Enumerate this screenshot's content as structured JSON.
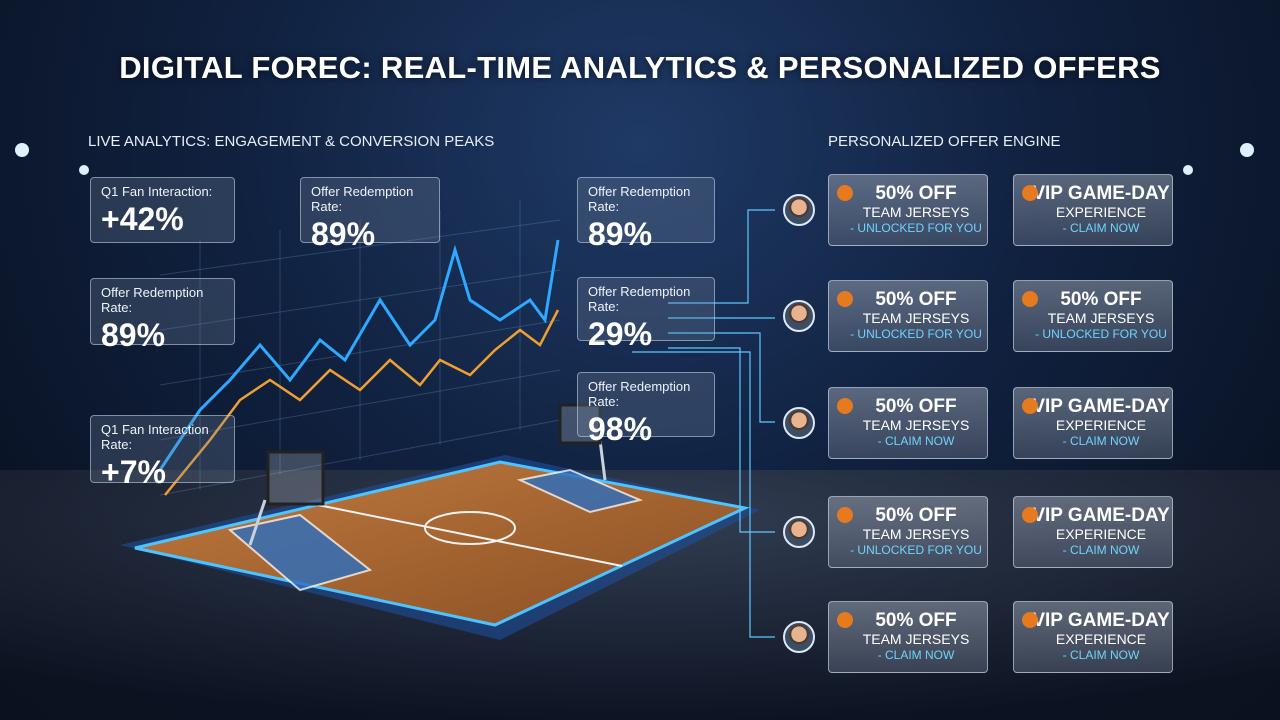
{
  "header": {
    "title": "DIGITAL FOREC: REAL-TIME ANALYTICS & PERSONALIZED OFFERS"
  },
  "analytics": {
    "title": "LIVE ANALYTICS: ENGAGEMENT & CONVERSION PEAKS",
    "stats": [
      {
        "label": "Q1 Fan Interaction:",
        "value": "+42%"
      },
      {
        "label": "Offer Redemption Rate:",
        "value": "89%"
      },
      {
        "label": "Offer Redemption Rate:",
        "value": "89%"
      },
      {
        "label": "Offer Redemption Rate:",
        "value": "89%"
      },
      {
        "label": "Offer Redemption Rate:",
        "value": "29%"
      },
      {
        "label": "Offer Redemption Rate:",
        "value": "98%"
      },
      {
        "label": "Q1 Fan Interaction Rate:",
        "value": "+7%"
      }
    ]
  },
  "offers": {
    "title": "PERSONALIZED OFFER ENGINE",
    "rows": [
      [
        {
          "headline": "50% OFF",
          "item": "TEAM JERSEYS",
          "status": "- UNLOCKED FOR YOU"
        },
        {
          "headline": "VIP GAME-DAY",
          "item": "EXPERIENCE",
          "status": "- CLAIM NOW"
        }
      ],
      [
        {
          "headline": "50% OFF",
          "item": "TEAM JERSEYS",
          "status": "- UNLOCKED FOR YOU"
        },
        {
          "headline": "50% OFF",
          "item": "TEAM JERSEYS",
          "status": "- UNLOCKED FOR YOU"
        }
      ],
      [
        {
          "headline": "50% OFF",
          "item": "TEAM JERSEYS",
          "status": "- CLAIM NOW"
        },
        {
          "headline": "VIP GAME-DAY",
          "item": "EXPERIENCE",
          "status": "- CLAIM NOW"
        }
      ],
      [
        {
          "headline": "50% OFF",
          "item": "TEAM JERSEYS",
          "status": "- UNLOCKED FOR YOU"
        },
        {
          "headline": "VIP GAME-DAY",
          "item": "EXPERIENCE",
          "status": "- CLAIM NOW"
        }
      ],
      [
        {
          "headline": "50% OFF",
          "item": "TEAM JERSEYS",
          "status": "- CLAIM NOW"
        },
        {
          "headline": "VIP GAME-DAY",
          "item": "EXPERIENCE",
          "status": "- CLAIM NOW"
        }
      ]
    ]
  }
}
